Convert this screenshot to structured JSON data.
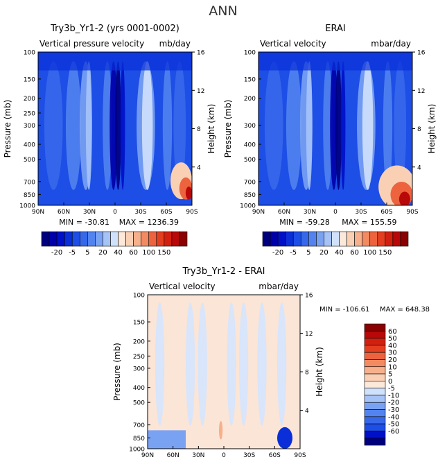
{
  "figure_title": "ANN",
  "colors": {
    "neg": [
      "#00007f",
      "#0000a8",
      "#0010c8",
      "#0a2fd8",
      "#1d4ee6",
      "#3768ea",
      "#5283ee",
      "#7aa2f3",
      "#a6c3f8",
      "#d0e1fc"
    ],
    "zero": "#fde9d9",
    "pos": [
      "#fad0b5",
      "#f6b08c",
      "#f28a62",
      "#ec633e",
      "#e43e21",
      "#d22010",
      "#b80808",
      "#8b0000"
    ],
    "diff_pos": "#fbe5d6",
    "diff_neg": "#d8e5fb"
  },
  "chart_data": [
    {
      "type": "heatmap",
      "name": "model",
      "title": "Try3b_Yr1-2 (yrs 0001-0002)",
      "subtitle_left": "Vertical pressure velocity",
      "subtitle_right": "mb/day",
      "ylabel": "Pressure (mb)",
      "ylabel_right": "Height (km)",
      "x_ticks": [
        "90N",
        "60N",
        "30N",
        "0",
        "30S",
        "60S",
        "90S"
      ],
      "y_ticks": [
        "100",
        "150",
        "200",
        "250",
        "300",
        "400",
        "500",
        "700",
        "850",
        "1000"
      ],
      "height_ticks": [
        "16",
        "12",
        "8",
        "4"
      ],
      "min_label": "MIN = -30.81",
      "max_label": "MAX = 1236.39",
      "colorbar_ticks": [
        "-20",
        "-5",
        "5",
        "20",
        "40",
        "60",
        "100",
        "150"
      ]
    },
    {
      "type": "heatmap",
      "name": "obs",
      "title": "ERAI",
      "subtitle_left": "Vertical velocity",
      "subtitle_right": "mbar/day",
      "ylabel": "Pressure (mb)",
      "ylabel_right": "Height (km)",
      "x_ticks": [
        "90N",
        "60N",
        "30N",
        "0",
        "30S",
        "60S",
        "90S"
      ],
      "y_ticks": [
        "100",
        "150",
        "200",
        "300",
        "400",
        "500",
        "700",
        "850",
        "1000"
      ],
      "height_ticks": [
        "16",
        "12",
        "8",
        "4"
      ],
      "min_label": "MIN = -59.28",
      "max_label": "MAX = 155.59",
      "colorbar_ticks": [
        "-20",
        "-5",
        "5",
        "20",
        "40",
        "60",
        "100",
        "150"
      ]
    },
    {
      "type": "heatmap",
      "name": "diff",
      "title": "Try3b_Yr1-2 - ERAI",
      "subtitle_left": "Vertical velocity",
      "subtitle_right": "mbar/day",
      "ylabel": "Pressure (mb)",
      "ylabel_right": "Height (km)",
      "x_ticks": [
        "90N",
        "60N",
        "30N",
        "0",
        "30S",
        "60S",
        "90S"
      ],
      "y_ticks": [
        "100",
        "150",
        "200",
        "250",
        "300",
        "400",
        "500",
        "700",
        "850",
        "1000"
      ],
      "height_ticks": [
        "16",
        "12",
        "8",
        "4"
      ],
      "min_label": "MIN = -106.61",
      "max_label": "MAX = 648.38",
      "colorbar_ticks": [
        "60",
        "50",
        "40",
        "30",
        "20",
        "10",
        "5",
        "0",
        "-5",
        "-10",
        "-20",
        "-30",
        "-40",
        "-50",
        "-60"
      ]
    }
  ]
}
